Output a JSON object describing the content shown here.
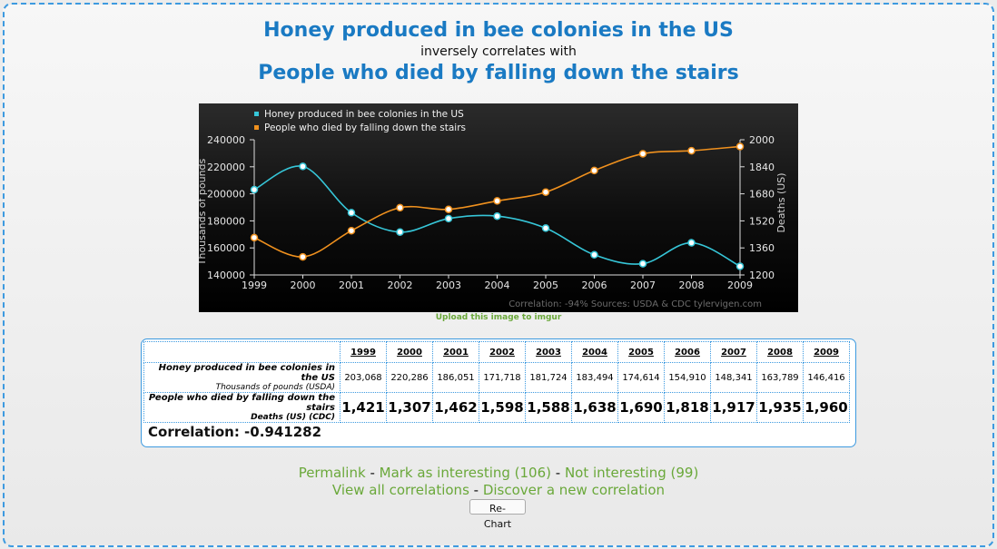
{
  "titles": {
    "var1": "Honey produced in bee colonies in the US",
    "middle": "inversely correlates with",
    "var2": "People who died by falling down the stairs"
  },
  "upload_link": "Upload this image to imgur",
  "chart_data": {
    "type": "line",
    "x": [
      1999,
      2000,
      2001,
      2002,
      2003,
      2004,
      2005,
      2006,
      2007,
      2008,
      2009
    ],
    "series": [
      {
        "name": "Honey produced in bee colonies in the US",
        "axis": "left",
        "color": "#36c6d8",
        "values": [
          203068,
          220286,
          186051,
          171718,
          181724,
          183494,
          174614,
          154910,
          148341,
          163789,
          146416
        ]
      },
      {
        "name": "People who died by falling down the stairs",
        "axis": "right",
        "color": "#f0911e",
        "values": [
          1421,
          1307,
          1462,
          1598,
          1588,
          1638,
          1690,
          1818,
          1917,
          1935,
          1960
        ]
      }
    ],
    "ylabel_left": "Thousands of pounds",
    "ylabel_right": "Deaths (US)",
    "ylim_left": [
      140000,
      240000
    ],
    "ylim_right": [
      1200,
      2000
    ],
    "yticks_left": [
      140000,
      160000,
      180000,
      200000,
      220000,
      240000
    ],
    "yticks_right": [
      1200,
      1360,
      1520,
      1680,
      1840,
      2000
    ],
    "footer": "Correlation: -94%    Sources: USDA & CDC    tylervigen.com",
    "legend_position": "top-left",
    "background": "#111111"
  },
  "table": {
    "years": [
      "1999",
      "2000",
      "2001",
      "2002",
      "2003",
      "2004",
      "2005",
      "2006",
      "2007",
      "2008",
      "2009"
    ],
    "row1": {
      "label": "Honey produced in bee colonies in the US",
      "unit": "Thousands of pounds (USDA)",
      "values": [
        "203,068",
        "220,286",
        "186,051",
        "171,718",
        "181,724",
        "183,494",
        "174,614",
        "154,910",
        "148,341",
        "163,789",
        "146,416"
      ]
    },
    "row2": {
      "label": "People who died by falling down the stairs",
      "unit": "Deaths (US) (CDC)",
      "values": [
        "1,421",
        "1,307",
        "1,462",
        "1,598",
        "1,588",
        "1,638",
        "1,690",
        "1,818",
        "1,917",
        "1,935",
        "1,960"
      ]
    },
    "correlation": "Correlation: -0.941282"
  },
  "links": {
    "permalink": "Permalink",
    "mark_interesting": "Mark as interesting (106)",
    "not_interesting": "Not interesting (99)",
    "view_all": "View all correlations",
    "discover": "Discover a new correlation",
    "separator": " - "
  },
  "rechart_label": "Re-Chart"
}
